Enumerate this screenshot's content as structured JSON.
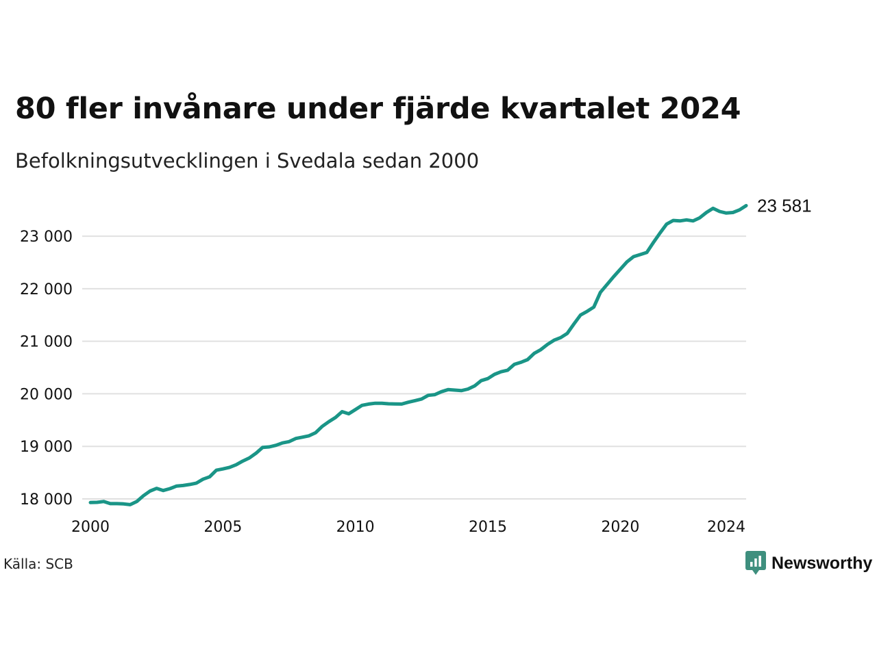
{
  "title": "80 fler invånare under fjärde kvartalet 2024",
  "subtitle": "Befolkningsutvecklingen i Svedala sedan 2000",
  "source": "Källa: SCB",
  "brand": {
    "name": "Newsworthy",
    "color": "#3e8f7e"
  },
  "colors": {
    "line": "#1a9587",
    "grid": "#e0e0e0",
    "text": "#111111"
  },
  "chart_data": {
    "type": "line",
    "title": "80 fler invånare under fjärde kvartalet 2024",
    "subtitle": "Befolkningsutvecklingen i Svedala sedan 2000",
    "xlabel": "",
    "ylabel": "",
    "grid": true,
    "xlim": [
      2000,
      2024.75
    ],
    "ylim": [
      17700,
      23900
    ],
    "x_ticks": [
      2000,
      2005,
      2010,
      2015,
      2020,
      2024
    ],
    "x_tick_labels": [
      "2000",
      "2005",
      "2010",
      "2015",
      "2020",
      "2024"
    ],
    "y_ticks": [
      18000,
      19000,
      20000,
      21000,
      22000,
      23000
    ],
    "y_tick_labels": [
      "18 000",
      "19 000",
      "20 000",
      "21 000",
      "22 000",
      "23 000"
    ],
    "end_label": "23 581",
    "series": [
      {
        "values": [
          [
            2000.0,
            17930
          ],
          [
            2000.25,
            17935
          ],
          [
            2000.5,
            17950
          ],
          [
            2000.75,
            17910
          ],
          [
            2001.0,
            17910
          ],
          [
            2001.25,
            17905
          ],
          [
            2001.5,
            17890
          ],
          [
            2001.75,
            17950
          ],
          [
            2002.0,
            18060
          ],
          [
            2002.25,
            18150
          ],
          [
            2002.5,
            18200
          ],
          [
            2002.75,
            18160
          ],
          [
            2003.0,
            18195
          ],
          [
            2003.25,
            18245
          ],
          [
            2003.5,
            18255
          ],
          [
            2003.75,
            18275
          ],
          [
            2004.0,
            18300
          ],
          [
            2004.25,
            18375
          ],
          [
            2004.5,
            18420
          ],
          [
            2004.75,
            18545
          ],
          [
            2005.0,
            18570
          ],
          [
            2005.25,
            18600
          ],
          [
            2005.5,
            18650
          ],
          [
            2005.75,
            18720
          ],
          [
            2006.0,
            18780
          ],
          [
            2006.25,
            18870
          ],
          [
            2006.5,
            18980
          ],
          [
            2006.75,
            18990
          ],
          [
            2007.0,
            19020
          ],
          [
            2007.25,
            19065
          ],
          [
            2007.5,
            19090
          ],
          [
            2007.75,
            19150
          ],
          [
            2008.0,
            19175
          ],
          [
            2008.25,
            19200
          ],
          [
            2008.5,
            19260
          ],
          [
            2008.75,
            19380
          ],
          [
            2009.0,
            19470
          ],
          [
            2009.25,
            19550
          ],
          [
            2009.5,
            19660
          ],
          [
            2009.75,
            19620
          ],
          [
            2010.0,
            19700
          ],
          [
            2010.25,
            19780
          ],
          [
            2010.5,
            19805
          ],
          [
            2010.75,
            19820
          ],
          [
            2011.0,
            19820
          ],
          [
            2011.25,
            19810
          ],
          [
            2011.5,
            19808
          ],
          [
            2011.75,
            19805
          ],
          [
            2012.0,
            19840
          ],
          [
            2012.25,
            19870
          ],
          [
            2012.5,
            19900
          ],
          [
            2012.75,
            19970
          ],
          [
            2013.0,
            19985
          ],
          [
            2013.25,
            20040
          ],
          [
            2013.5,
            20080
          ],
          [
            2013.75,
            20070
          ],
          [
            2014.0,
            20060
          ],
          [
            2014.25,
            20090
          ],
          [
            2014.5,
            20150
          ],
          [
            2014.75,
            20250
          ],
          [
            2015.0,
            20290
          ],
          [
            2015.25,
            20370
          ],
          [
            2015.5,
            20420
          ],
          [
            2015.75,
            20450
          ],
          [
            2016.0,
            20560
          ],
          [
            2016.25,
            20600
          ],
          [
            2016.5,
            20650
          ],
          [
            2016.75,
            20770
          ],
          [
            2017.0,
            20840
          ],
          [
            2017.25,
            20940
          ],
          [
            2017.5,
            21020
          ],
          [
            2017.75,
            21070
          ],
          [
            2018.0,
            21150
          ],
          [
            2018.25,
            21330
          ],
          [
            2018.5,
            21500
          ],
          [
            2018.75,
            21570
          ],
          [
            2019.0,
            21650
          ],
          [
            2019.25,
            21930
          ],
          [
            2019.5,
            22080
          ],
          [
            2019.75,
            22230
          ],
          [
            2020.0,
            22370
          ],
          [
            2020.25,
            22510
          ],
          [
            2020.5,
            22610
          ],
          [
            2020.75,
            22650
          ],
          [
            2021.0,
            22690
          ],
          [
            2021.25,
            22880
          ],
          [
            2021.5,
            23060
          ],
          [
            2021.75,
            23230
          ],
          [
            2022.0,
            23300
          ],
          [
            2022.25,
            23290
          ],
          [
            2022.5,
            23310
          ],
          [
            2022.75,
            23290
          ],
          [
            2023.0,
            23350
          ],
          [
            2023.25,
            23450
          ],
          [
            2023.5,
            23530
          ],
          [
            2023.75,
            23470
          ],
          [
            2024.0,
            23440
          ],
          [
            2024.25,
            23450
          ],
          [
            2024.5,
            23500
          ],
          [
            2024.75,
            23581
          ]
        ]
      }
    ]
  }
}
